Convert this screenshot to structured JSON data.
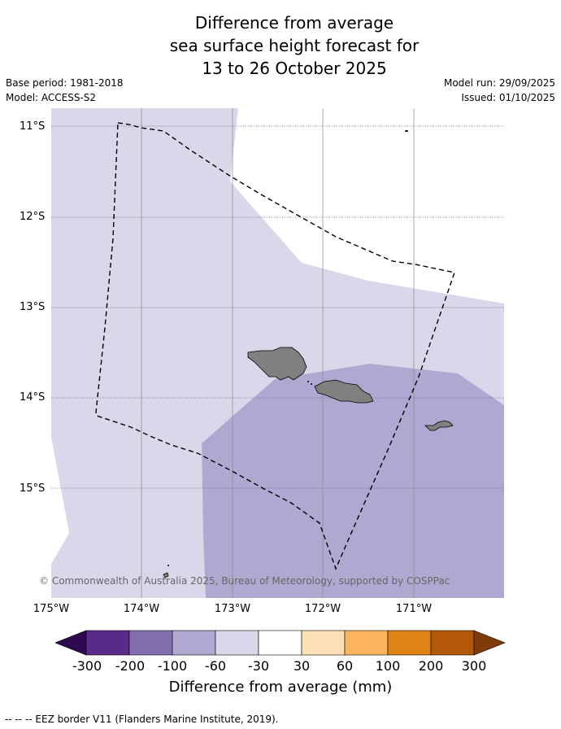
{
  "title": {
    "line1": "Difference from average",
    "line2": "sea surface height forecast for",
    "line3": "13 to 26 October 2025"
  },
  "meta": {
    "base_period": "Base period: 1981-2018",
    "model": "Model: ACCESS-S2",
    "model_run": "Model run: 29/09/2025",
    "issued": "Issued: 01/10/2025"
  },
  "axes": {
    "lat_labels": [
      "11°S",
      "12°S",
      "13°S",
      "14°S",
      "15°S"
    ],
    "lon_labels": [
      "175°W",
      "174°W",
      "173°W",
      "172°W",
      "171°W"
    ]
  },
  "copyright": "© Commonwealth of Australia 2025, Bureau of Meteorology, supported by COSPPac",
  "colorbar": {
    "ticks": [
      "-300",
      "-200",
      "-100",
      "-60",
      "-30",
      "30",
      "60",
      "100",
      "200",
      "300"
    ],
    "colors": [
      "#2d0a4f",
      "#5a2a8a",
      "#8170ad",
      "#b0a8d0",
      "#d8d8ea",
      "#ffffff",
      "#fde0b6",
      "#fbb55e",
      "#e08214",
      "#b35806",
      "#7f3b08"
    ],
    "label": "Difference from average (mm)"
  },
  "legend": {
    "eez_text": "--  --  -- EEZ border V11 (Flanders Marine Institute, 2019)."
  },
  "fill_colors": {
    "band_minus60_minus30": "#d8d8ea",
    "band_minus100_minus60": "#b0a8d0",
    "land": "#808080"
  }
}
